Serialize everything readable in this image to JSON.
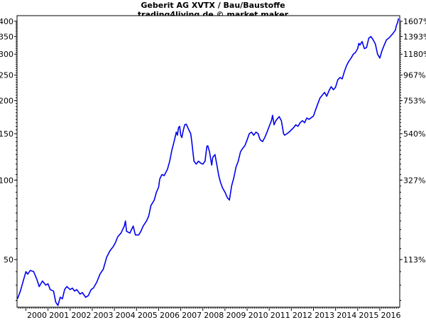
{
  "chart_data": {
    "type": "line",
    "title": "Geberit AG XVTX / Bau/Baustoffe",
    "subtitle": "trading4living.de © market maker",
    "y_scale": "log",
    "ylim": [
      33,
      420
    ],
    "xlim": [
      1999.6,
      2016.9
    ],
    "left_ticks": [
      {
        "value": 400,
        "label": "400"
      },
      {
        "value": 350,
        "label": "350"
      },
      {
        "value": 300,
        "label": "300"
      },
      {
        "value": 250,
        "label": "250"
      },
      {
        "value": 200,
        "label": "200"
      },
      {
        "value": 150,
        "label": "150"
      },
      {
        "value": 100,
        "label": "100"
      },
      {
        "value": 50,
        "label": "50"
      }
    ],
    "right_ticks": [
      {
        "value": 400,
        "label": "1607%"
      },
      {
        "value": 350,
        "label": "1393%"
      },
      {
        "value": 300,
        "label": "1180%"
      },
      {
        "value": 250,
        "label": "967%"
      },
      {
        "value": 200,
        "label": "753%"
      },
      {
        "value": 150,
        "label": "540%"
      },
      {
        "value": 100,
        "label": "327%"
      },
      {
        "value": 50,
        "label": "113%"
      }
    ],
    "x_ticks": [
      "2000",
      "2001",
      "2002",
      "2003",
      "2004",
      "2005",
      "2006",
      "2007",
      "2008",
      "2009",
      "2010",
      "2011",
      "2012",
      "2013",
      "2014",
      "2015",
      "2016"
    ],
    "line_color": "#0000ee",
    "series": [
      {
        "points": [
          [
            1999.62,
            35.5
          ],
          [
            1999.75,
            38
          ],
          [
            1999.9,
            42
          ],
          [
            2000.0,
            45
          ],
          [
            2000.08,
            44
          ],
          [
            2000.2,
            45.5
          ],
          [
            2000.35,
            45
          ],
          [
            2000.5,
            42
          ],
          [
            2000.6,
            39.5
          ],
          [
            2000.75,
            41.5
          ],
          [
            2000.9,
            40
          ],
          [
            2001.0,
            40.5
          ],
          [
            2001.1,
            38.5
          ],
          [
            2001.25,
            38
          ],
          [
            2001.35,
            34.5
          ],
          [
            2001.45,
            33.5
          ],
          [
            2001.55,
            36
          ],
          [
            2001.65,
            35.5
          ],
          [
            2001.75,
            38.5
          ],
          [
            2001.85,
            39.5
          ],
          [
            2002.0,
            38.5
          ],
          [
            2002.1,
            39
          ],
          [
            2002.2,
            38
          ],
          [
            2002.3,
            38.5
          ],
          [
            2002.45,
            37
          ],
          [
            2002.55,
            37.5
          ],
          [
            2002.7,
            36
          ],
          [
            2002.82,
            36.5
          ],
          [
            2002.95,
            38.5
          ],
          [
            2003.05,
            39
          ],
          [
            2003.2,
            41
          ],
          [
            2003.35,
            44
          ],
          [
            2003.5,
            46
          ],
          [
            2003.65,
            51
          ],
          [
            2003.8,
            54
          ],
          [
            2003.95,
            56
          ],
          [
            2004.05,
            58
          ],
          [
            2004.15,
            61
          ],
          [
            2004.3,
            63
          ],
          [
            2004.45,
            67
          ],
          [
            2004.5,
            70
          ],
          [
            2004.55,
            64
          ],
          [
            2004.7,
            63
          ],
          [
            2004.85,
            67
          ],
          [
            2004.95,
            62
          ],
          [
            2005.1,
            62
          ],
          [
            2005.2,
            64
          ],
          [
            2005.3,
            67
          ],
          [
            2005.45,
            70
          ],
          [
            2005.55,
            73
          ],
          [
            2005.65,
            80
          ],
          [
            2005.8,
            84
          ],
          [
            2005.9,
            90
          ],
          [
            2006.0,
            94
          ],
          [
            2006.05,
            101
          ],
          [
            2006.15,
            105
          ],
          [
            2006.25,
            104
          ],
          [
            2006.4,
            110
          ],
          [
            2006.5,
            118
          ],
          [
            2006.6,
            130
          ],
          [
            2006.7,
            140
          ],
          [
            2006.8,
            152
          ],
          [
            2006.85,
            148
          ],
          [
            2006.9,
            158
          ],
          [
            2006.95,
            160
          ],
          [
            2007.0,
            148
          ],
          [
            2007.05,
            145
          ],
          [
            2007.12,
            155
          ],
          [
            2007.18,
            162
          ],
          [
            2007.25,
            163
          ],
          [
            2007.35,
            156
          ],
          [
            2007.45,
            150
          ],
          [
            2007.5,
            140
          ],
          [
            2007.55,
            128
          ],
          [
            2007.6,
            118
          ],
          [
            2007.7,
            115
          ],
          [
            2007.8,
            118
          ],
          [
            2007.9,
            116
          ],
          [
            2008.0,
            115
          ],
          [
            2008.1,
            118
          ],
          [
            2008.18,
            134
          ],
          [
            2008.22,
            135
          ],
          [
            2008.3,
            128
          ],
          [
            2008.4,
            114
          ],
          [
            2008.45,
            122
          ],
          [
            2008.55,
            125
          ],
          [
            2008.65,
            112
          ],
          [
            2008.72,
            104
          ],
          [
            2008.8,
            98
          ],
          [
            2008.9,
            93
          ],
          [
            2009.0,
            90
          ],
          [
            2009.1,
            86
          ],
          [
            2009.2,
            84
          ],
          [
            2009.3,
            95
          ],
          [
            2009.4,
            102
          ],
          [
            2009.5,
            112
          ],
          [
            2009.6,
            118
          ],
          [
            2009.7,
            128
          ],
          [
            2009.8,
            132
          ],
          [
            2009.9,
            135
          ],
          [
            2010.0,
            142
          ],
          [
            2010.1,
            150
          ],
          [
            2010.2,
            152
          ],
          [
            2010.3,
            148
          ],
          [
            2010.4,
            152
          ],
          [
            2010.5,
            150
          ],
          [
            2010.55,
            145
          ],
          [
            2010.6,
            142
          ],
          [
            2010.7,
            140
          ],
          [
            2010.8,
            145
          ],
          [
            2010.9,
            152
          ],
          [
            2011.0,
            160
          ],
          [
            2011.1,
            168
          ],
          [
            2011.15,
            176
          ],
          [
            2011.22,
            162
          ],
          [
            2011.3,
            168
          ],
          [
            2011.35,
            170
          ],
          [
            2011.45,
            174
          ],
          [
            2011.55,
            168
          ],
          [
            2011.65,
            150
          ],
          [
            2011.7,
            148
          ],
          [
            2011.8,
            150
          ],
          [
            2011.9,
            152
          ],
          [
            2012.0,
            155
          ],
          [
            2012.1,
            158
          ],
          [
            2012.2,
            162
          ],
          [
            2012.3,
            160
          ],
          [
            2012.4,
            165
          ],
          [
            2012.5,
            168
          ],
          [
            2012.6,
            165
          ],
          [
            2012.7,
            172
          ],
          [
            2012.8,
            170
          ],
          [
            2013.0,
            175
          ],
          [
            2013.1,
            185
          ],
          [
            2013.2,
            195
          ],
          [
            2013.3,
            205
          ],
          [
            2013.4,
            210
          ],
          [
            2013.5,
            215
          ],
          [
            2013.6,
            208
          ],
          [
            2013.7,
            218
          ],
          [
            2013.8,
            226
          ],
          [
            2013.9,
            220
          ],
          [
            2014.0,
            225
          ],
          [
            2014.1,
            240
          ],
          [
            2014.2,
            245
          ],
          [
            2014.3,
            242
          ],
          [
            2014.4,
            258
          ],
          [
            2014.5,
            272
          ],
          [
            2014.6,
            282
          ],
          [
            2014.7,
            290
          ],
          [
            2014.8,
            300
          ],
          [
            2014.9,
            305
          ],
          [
            2015.0,
            315
          ],
          [
            2015.05,
            330
          ],
          [
            2015.1,
            325
          ],
          [
            2015.2,
            335
          ],
          [
            2015.3,
            315
          ],
          [
            2015.4,
            318
          ],
          [
            2015.5,
            345
          ],
          [
            2015.6,
            350
          ],
          [
            2015.7,
            340
          ],
          [
            2015.8,
            328
          ],
          [
            2015.9,
            300
          ],
          [
            2016.0,
            290
          ],
          [
            2016.1,
            310
          ],
          [
            2016.2,
            325
          ],
          [
            2016.3,
            340
          ],
          [
            2016.4,
            345
          ],
          [
            2016.5,
            352
          ],
          [
            2016.6,
            360
          ],
          [
            2016.7,
            370
          ],
          [
            2016.75,
            385
          ],
          [
            2016.8,
            395
          ],
          [
            2016.85,
            410
          ]
        ]
      }
    ]
  }
}
